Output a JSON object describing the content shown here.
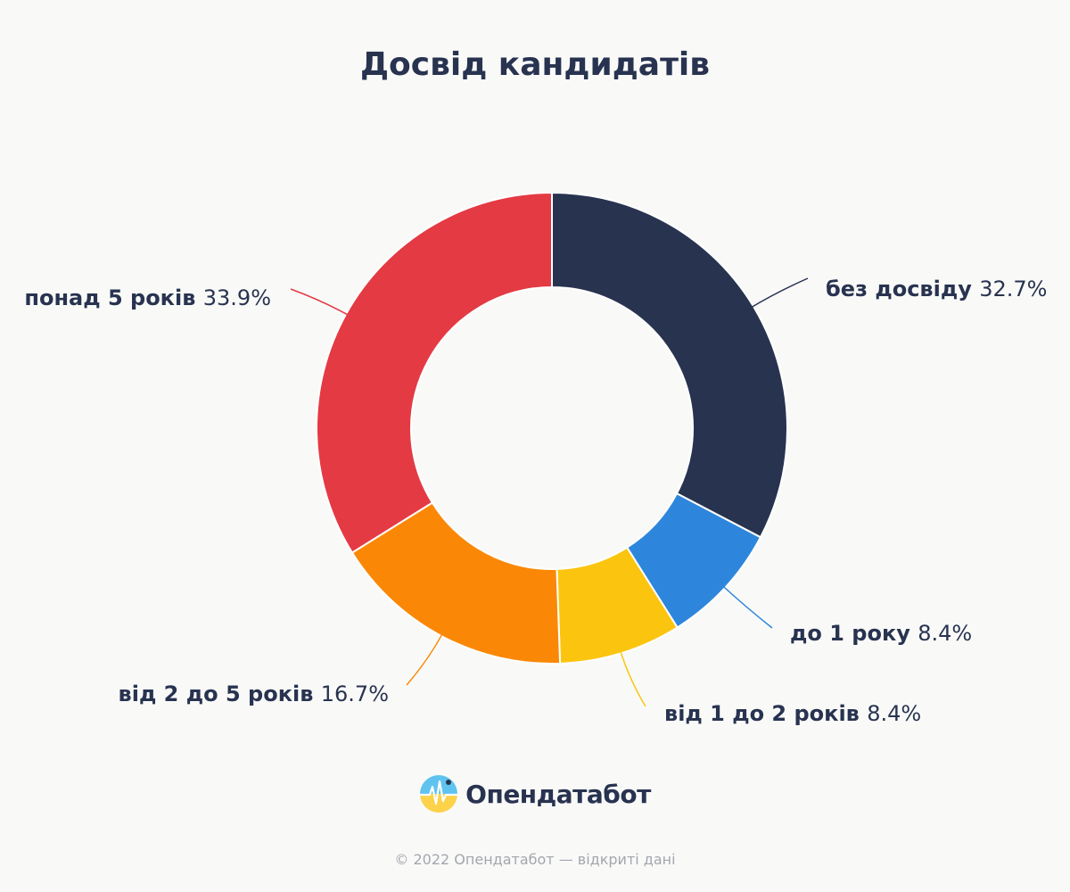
{
  "chart_data": {
    "type": "pie",
    "title": "Досвід кандидатів",
    "donut": true,
    "categories": [
      "без досвіду",
      "до 1 року",
      "від 1 до 2 років",
      "від 2 до 5 років",
      "понад 5 років"
    ],
    "values": [
      32.7,
      8.4,
      8.4,
      16.7,
      33.9
    ],
    "value_labels": [
      "32.7%",
      "8.4%",
      "8.4%",
      "16.7%",
      "33.9%"
    ],
    "colors": [
      "#283350",
      "#2e86dc",
      "#fbc50f",
      "#fa8806",
      "#e43a44"
    ]
  },
  "brand": {
    "name": "Опендатабот",
    "logo_icon": "opendatabot-logo-icon"
  },
  "footer": {
    "copyright": "© 2022 Опендатабот — відкриті дані"
  }
}
